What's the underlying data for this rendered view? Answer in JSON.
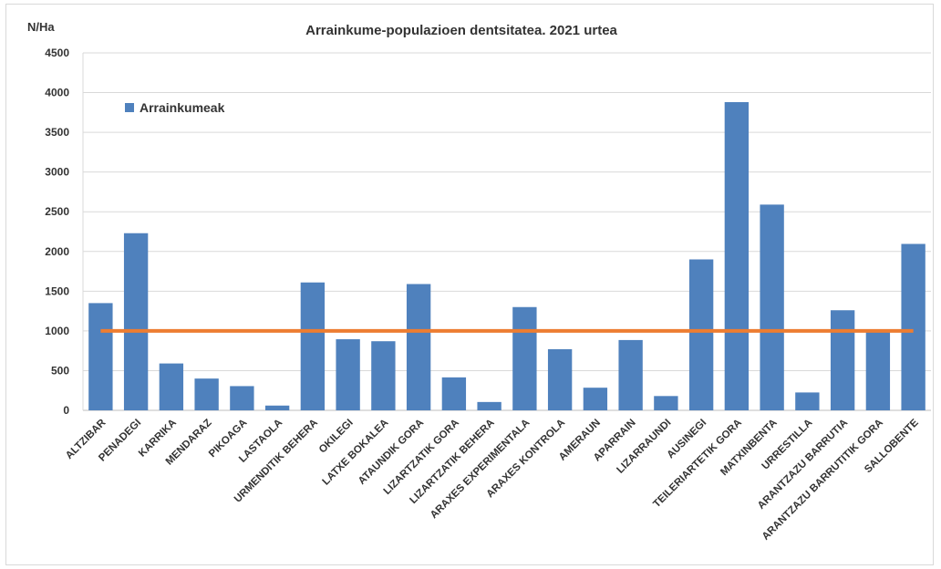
{
  "chart_data": {
    "type": "bar",
    "title": "Arrainkume-populazioen  dentsitatea. 2021 urtea",
    "ylabel": "N/Ha",
    "xlabel": "",
    "ylim": [
      0,
      4500
    ],
    "yticks": [
      0,
      500,
      1000,
      1500,
      2000,
      2500,
      3000,
      3500,
      4000,
      4500
    ],
    "grid": true,
    "legend_position": "top-left",
    "categories": [
      "ALTZIBAR",
      "PENADEGI",
      "KARRIKA",
      "MENDARAZ",
      "PIKOAGA",
      "LASTAOLA",
      "URMENDITIK BEHERA",
      "OKILEGI",
      "LATXE BOKALEA",
      "ATAUNDIK GORA",
      "LIZARTZATIK GORA",
      "LIZARTZATIK BEHERA",
      "ARAXES EXPERIMENTALA",
      "ARAXES KONTROLA",
      "AMERAUN",
      "APARRAIN",
      "LIZARRAUNDI",
      "AUSINEGI",
      "TEILERIARTETIK GORA",
      "MATXINBENTA",
      "URRESTILLA",
      "ARANTZAZU BARRUTIA",
      "ARANTZAZU BARRUTITIK GORA",
      "SALLOBENTE"
    ],
    "series": [
      {
        "name": "Arrainkumeak",
        "color": "#4f81bd",
        "values": [
          1350,
          2230,
          590,
          400,
          305,
          60,
          1610,
          895,
          870,
          1590,
          415,
          105,
          1300,
          770,
          285,
          885,
          180,
          1900,
          3880,
          2590,
          225,
          1260,
          990,
          2095
        ]
      }
    ],
    "reference_line": {
      "value": 1000,
      "color": "#ed7d31"
    }
  }
}
